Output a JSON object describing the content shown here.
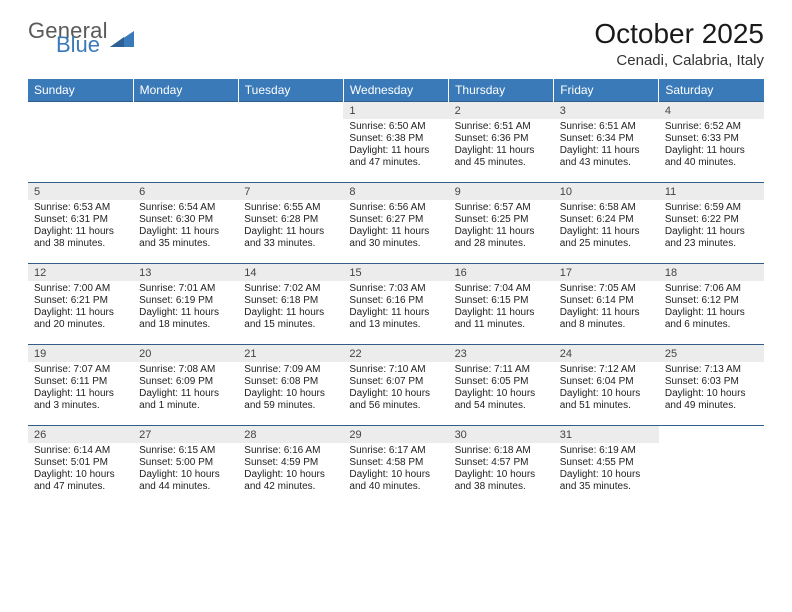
{
  "brand": {
    "word1": "General",
    "word2": "Blue"
  },
  "title": "October 2025",
  "location": "Cenadi, Calabria, Italy",
  "colors": {
    "header_bg": "#3a7ab8",
    "header_fg": "#ffffff",
    "daynum_bg": "#ececec",
    "rule": "#315d86",
    "logo_gray": "#5a5a5a",
    "logo_blue": "#3a7ab8"
  },
  "dow": [
    "Sunday",
    "Monday",
    "Tuesday",
    "Wednesday",
    "Thursday",
    "Friday",
    "Saturday"
  ],
  "weeks": [
    {
      "nums": [
        "",
        "",
        "",
        "1",
        "2",
        "3",
        "4"
      ],
      "cells": [
        "",
        "",
        "",
        "Sunrise: 6:50 AM\nSunset: 6:38 PM\nDaylight: 11 hours\nand 47 minutes.",
        "Sunrise: 6:51 AM\nSunset: 6:36 PM\nDaylight: 11 hours\nand 45 minutes.",
        "Sunrise: 6:51 AM\nSunset: 6:34 PM\nDaylight: 11 hours\nand 43 minutes.",
        "Sunrise: 6:52 AM\nSunset: 6:33 PM\nDaylight: 11 hours\nand 40 minutes."
      ]
    },
    {
      "nums": [
        "5",
        "6",
        "7",
        "8",
        "9",
        "10",
        "11"
      ],
      "cells": [
        "Sunrise: 6:53 AM\nSunset: 6:31 PM\nDaylight: 11 hours\nand 38 minutes.",
        "Sunrise: 6:54 AM\nSunset: 6:30 PM\nDaylight: 11 hours\nand 35 minutes.",
        "Sunrise: 6:55 AM\nSunset: 6:28 PM\nDaylight: 11 hours\nand 33 minutes.",
        "Sunrise: 6:56 AM\nSunset: 6:27 PM\nDaylight: 11 hours\nand 30 minutes.",
        "Sunrise: 6:57 AM\nSunset: 6:25 PM\nDaylight: 11 hours\nand 28 minutes.",
        "Sunrise: 6:58 AM\nSunset: 6:24 PM\nDaylight: 11 hours\nand 25 minutes.",
        "Sunrise: 6:59 AM\nSunset: 6:22 PM\nDaylight: 11 hours\nand 23 minutes."
      ]
    },
    {
      "nums": [
        "12",
        "13",
        "14",
        "15",
        "16",
        "17",
        "18"
      ],
      "cells": [
        "Sunrise: 7:00 AM\nSunset: 6:21 PM\nDaylight: 11 hours\nand 20 minutes.",
        "Sunrise: 7:01 AM\nSunset: 6:19 PM\nDaylight: 11 hours\nand 18 minutes.",
        "Sunrise: 7:02 AM\nSunset: 6:18 PM\nDaylight: 11 hours\nand 15 minutes.",
        "Sunrise: 7:03 AM\nSunset: 6:16 PM\nDaylight: 11 hours\nand 13 minutes.",
        "Sunrise: 7:04 AM\nSunset: 6:15 PM\nDaylight: 11 hours\nand 11 minutes.",
        "Sunrise: 7:05 AM\nSunset: 6:14 PM\nDaylight: 11 hours\nand 8 minutes.",
        "Sunrise: 7:06 AM\nSunset: 6:12 PM\nDaylight: 11 hours\nand 6 minutes."
      ]
    },
    {
      "nums": [
        "19",
        "20",
        "21",
        "22",
        "23",
        "24",
        "25"
      ],
      "cells": [
        "Sunrise: 7:07 AM\nSunset: 6:11 PM\nDaylight: 11 hours\nand 3 minutes.",
        "Sunrise: 7:08 AM\nSunset: 6:09 PM\nDaylight: 11 hours\nand 1 minute.",
        "Sunrise: 7:09 AM\nSunset: 6:08 PM\nDaylight: 10 hours\nand 59 minutes.",
        "Sunrise: 7:10 AM\nSunset: 6:07 PM\nDaylight: 10 hours\nand 56 minutes.",
        "Sunrise: 7:11 AM\nSunset: 6:05 PM\nDaylight: 10 hours\nand 54 minutes.",
        "Sunrise: 7:12 AM\nSunset: 6:04 PM\nDaylight: 10 hours\nand 51 minutes.",
        "Sunrise: 7:13 AM\nSunset: 6:03 PM\nDaylight: 10 hours\nand 49 minutes."
      ]
    },
    {
      "nums": [
        "26",
        "27",
        "28",
        "29",
        "30",
        "31",
        ""
      ],
      "cells": [
        "Sunrise: 6:14 AM\nSunset: 5:01 PM\nDaylight: 10 hours\nand 47 minutes.",
        "Sunrise: 6:15 AM\nSunset: 5:00 PM\nDaylight: 10 hours\nand 44 minutes.",
        "Sunrise: 6:16 AM\nSunset: 4:59 PM\nDaylight: 10 hours\nand 42 minutes.",
        "Sunrise: 6:17 AM\nSunset: 4:58 PM\nDaylight: 10 hours\nand 40 minutes.",
        "Sunrise: 6:18 AM\nSunset: 4:57 PM\nDaylight: 10 hours\nand 38 minutes.",
        "Sunrise: 6:19 AM\nSunset: 4:55 PM\nDaylight: 10 hours\nand 35 minutes.",
        ""
      ]
    }
  ]
}
